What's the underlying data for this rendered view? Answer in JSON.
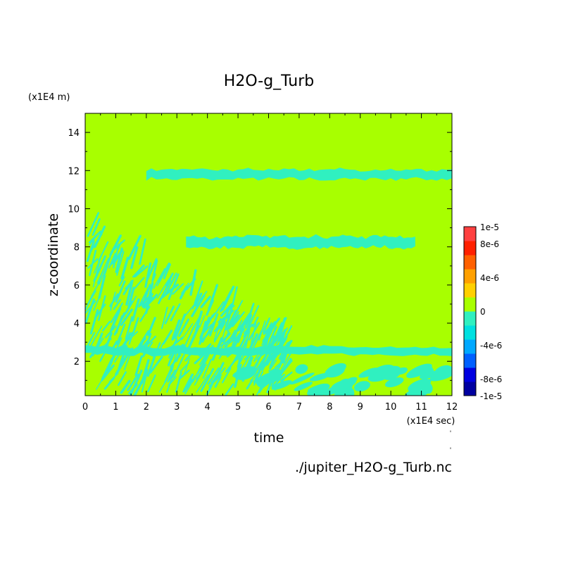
{
  "chart_data": {
    "type": "heatmap",
    "title": "H2O-g_Turb",
    "xlabel": "time",
    "ylabel": "z-coordinate",
    "x_unit": "(x1E4 sec)",
    "y_unit": "(x1E4 m)",
    "source": "./jupiter_H2O-g_Turb.nc",
    "xlim": [
      0,
      12
    ],
    "ylim": [
      0.2,
      15
    ],
    "x_ticks": [
      "0",
      "1",
      "2",
      "3",
      "4",
      "5",
      "6",
      "7",
      "8",
      "9",
      "10",
      "11",
      "12"
    ],
    "y_ticks": [
      "2",
      "4",
      "6",
      "8",
      "10",
      "12",
      "14"
    ],
    "background_value": 0,
    "colorbar": {
      "range": [
        -1e-05,
        1e-05
      ],
      "labels": [
        "1e-5",
        "8e-6",
        "4e-6",
        "0",
        "-4e-6",
        "-8e-6",
        "-1e-5"
      ],
      "colors": [
        "#0000a0",
        "#0000e0",
        "#0060ff",
        "#00a8ff",
        "#00e0e0",
        "#30f0c0",
        "#a8ff00",
        "#ffd000",
        "#ffa000",
        "#ff6000",
        "#ff2000",
        "#ff4040"
      ]
    },
    "field_colors": {
      "zero": "#a8ff00",
      "negative_small": "#30f0c0"
    },
    "features": [
      {
        "name": "upper negative band",
        "t": [
          2,
          12
        ],
        "z": [
          11.5,
          12.1
        ]
      },
      {
        "name": "band near z=8",
        "t": [
          3.3,
          10.8
        ],
        "z": [
          7.9,
          8.6
        ]
      },
      {
        "name": "band near z=2.5",
        "t": [
          0,
          12
        ],
        "z": [
          2.3,
          2.8
        ]
      },
      {
        "name": "turbulent region",
        "t": [
          0,
          6.5
        ],
        "z": [
          0.2,
          7.5
        ]
      },
      {
        "name": "bottom blobs",
        "t": [
          5,
          12
        ],
        "z": [
          0.2,
          1.6
        ]
      }
    ]
  }
}
